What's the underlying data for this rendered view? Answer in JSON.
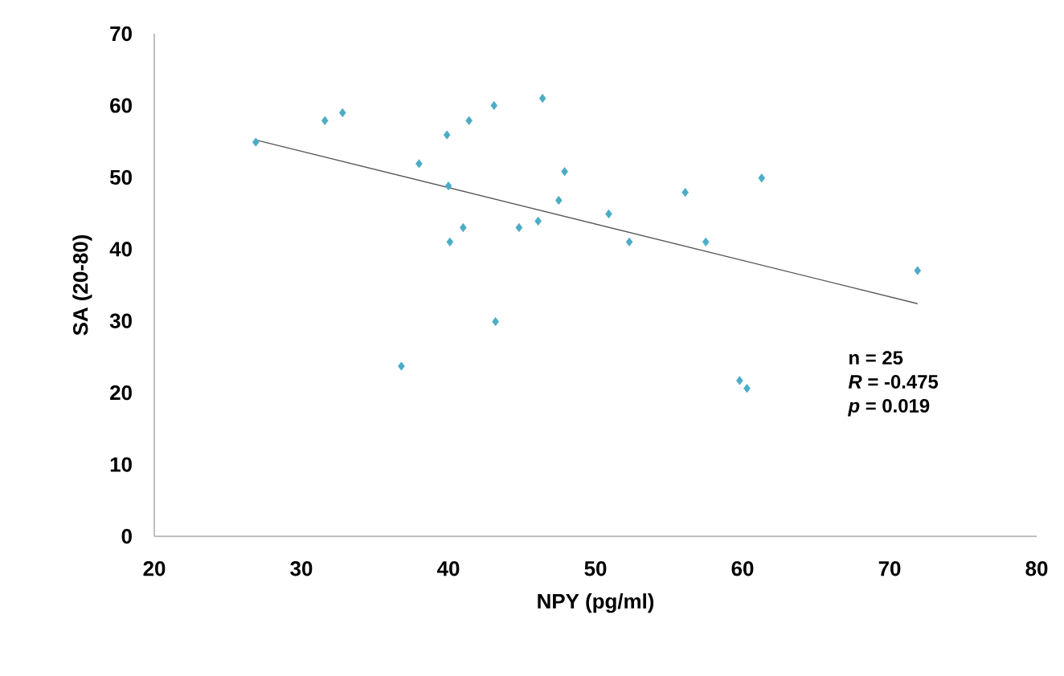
{
  "chart_data": {
    "type": "scatter",
    "xlabel": "NPY (pg/ml)",
    "ylabel": "SA (20-80)",
    "xlim": [
      20,
      80
    ],
    "xticks": [
      20,
      30,
      40,
      50,
      60,
      70,
      80
    ],
    "ylim": [
      0,
      70
    ],
    "yticks": [
      0,
      10,
      20,
      30,
      40,
      50,
      60,
      70
    ],
    "marker": "diamond",
    "annotations": [
      "n = 25",
      "*R* = -0.475",
      "*p* = 0.019"
    ],
    "series": [
      {
        "color": "#4bacc6",
        "x": [
          26.9,
          31.6,
          32.8,
          38.0,
          39.9,
          40.0,
          40.1,
          41.0,
          41.4,
          43.1,
          43.2,
          36.8,
          44.8,
          46.1,
          46.4,
          47.5,
          47.9,
          50.9,
          52.3,
          56.1,
          57.5,
          61.3,
          59.8,
          60.3,
          71.9
        ],
        "values": [
          54.9,
          57.9,
          59.0,
          51.9,
          55.9,
          48.8,
          41.0,
          43.0,
          57.9,
          60.0,
          29.9,
          23.7,
          43.0,
          43.9,
          61.0,
          46.8,
          50.8,
          44.9,
          41.0,
          47.9,
          41.0,
          49.9,
          21.7,
          20.6,
          37.0
        ]
      },
      {
        "type": "line",
        "color": "#595959",
        "marker": "none",
        "line_style": "solid",
        "x": [
          26.9,
          71.9
        ],
        "values": [
          55.2,
          32.4
        ]
      }
    ]
  }
}
